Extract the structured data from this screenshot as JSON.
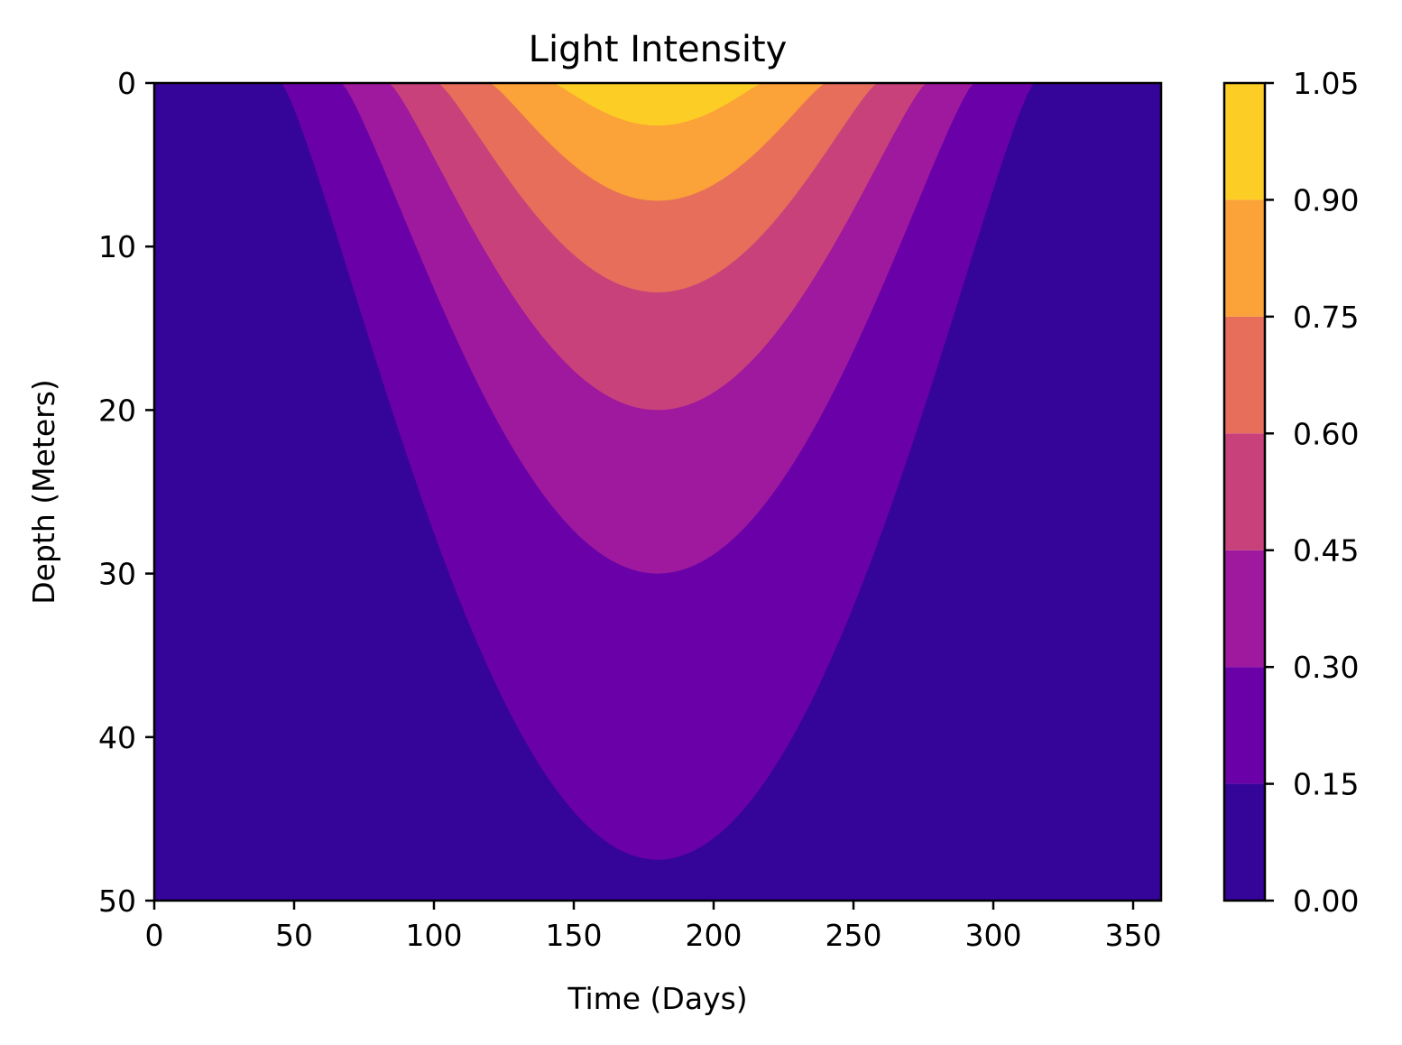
{
  "chart_data": {
    "type": "contourf",
    "title": "Light Intensity",
    "xlabel": "Time (Days)",
    "ylabel": "Depth (Meters)",
    "xlim": [
      0,
      360
    ],
    "ylim": [
      50,
      0
    ],
    "y_inverted": true,
    "xticks": [
      0,
      50,
      100,
      150,
      200,
      250,
      300,
      350
    ],
    "yticks": [
      0,
      10,
      20,
      30,
      40,
      50
    ],
    "colormap": "plasma",
    "colorbar": {
      "levels": [
        0.0,
        0.15,
        0.3,
        0.45,
        0.6,
        0.75,
        0.9,
        1.05
      ],
      "tick_labels": [
        "0.00",
        "0.15",
        "0.30",
        "0.45",
        "0.60",
        "0.75",
        "0.90",
        "1.05"
      ],
      "colors": [
        "#350498",
        "#6a00a8",
        "#9e199d",
        "#c9417b",
        "#e76e5b",
        "#fba238",
        "#fcce25"
      ]
    },
    "field": {
      "peak_day": 180,
      "peak_intensity": 1.0,
      "surface_extents": [
        {
          "level": 0.15,
          "from_day": 45.5,
          "to_day": 314.5
        },
        {
          "level": 0.3,
          "from_day": 67,
          "to_day": 293
        },
        {
          "level": 0.45,
          "from_day": 84,
          "to_day": 276
        },
        {
          "level": 0.6,
          "from_day": 101.5,
          "to_day": 258.5
        },
        {
          "level": 0.75,
          "from_day": 120,
          "to_day": 240
        },
        {
          "level": 0.9,
          "from_day": 142.5,
          "to_day": 217.5
        }
      ],
      "max_depth_at_peak": [
        {
          "level": 0.15,
          "depth": 47.5
        },
        {
          "level": 0.3,
          "depth": 30.0
        },
        {
          "level": 0.45,
          "depth": 20.0
        },
        {
          "level": 0.6,
          "depth": 12.8
        },
        {
          "level": 0.75,
          "depth": 7.2
        },
        {
          "level": 0.9,
          "depth": 2.6
        }
      ]
    }
  }
}
